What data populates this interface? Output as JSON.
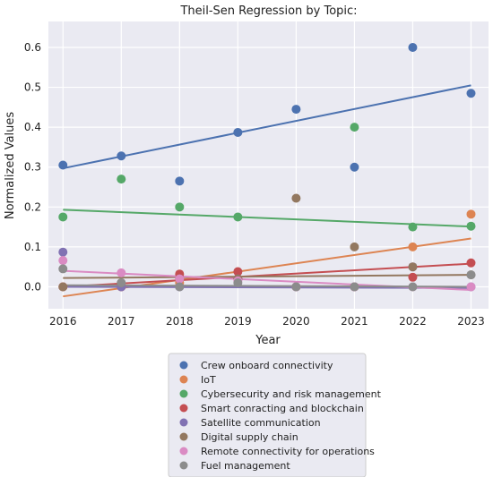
{
  "chart_data": {
    "type": "scatter",
    "title": "Theil-Sen Regression by Topic:",
    "xlabel": "Year",
    "ylabel": "Normalized Values",
    "x": [
      2016,
      2017,
      2018,
      2019,
      2020,
      2021,
      2022,
      2023
    ],
    "xticks": [
      "2016",
      "2017",
      "2018",
      "2019",
      "2020",
      "2021",
      "2022",
      "2023"
    ],
    "yticks": [
      "0.0",
      "0.1",
      "0.2",
      "0.3",
      "0.4",
      "0.5",
      "0.6"
    ],
    "xlim": [
      2015.75,
      2023.3
    ],
    "ylim": [
      -0.055,
      0.665
    ],
    "grid": true,
    "legend_position": "bottom",
    "series": [
      {
        "name": "Crew onboard connectivity",
        "color": "#4c72b0",
        "values": [
          0.305,
          0.328,
          0.265,
          0.387,
          0.445,
          0.3,
          0.6,
          0.485
        ],
        "fit": [
          0.297,
          0.505
        ]
      },
      {
        "name": "IoT",
        "color": "#dd8452",
        "values": [
          0.0,
          0.0,
          0.01,
          0.02,
          0.0,
          0.0,
          0.1,
          0.182
        ],
        "fit": [
          -0.024,
          0.121
        ]
      },
      {
        "name": "Cybersecurity and risk management",
        "color": "#55a868",
        "values": [
          0.175,
          0.27,
          0.2,
          0.175,
          0.0,
          0.4,
          0.15,
          0.152
        ],
        "fit": [
          0.193,
          0.151
        ]
      },
      {
        "name": "Smart conracting and blockchain",
        "color": "#c44e52",
        "values": [
          0.0,
          0.0,
          0.032,
          0.038,
          0.0,
          0.0,
          0.024,
          0.06
        ],
        "fit": [
          0.0,
          0.058
        ]
      },
      {
        "name": "Satellite communication",
        "color": "#8172b3",
        "values": [
          0.087,
          0.0,
          0.0,
          0.02,
          0.0,
          0.0,
          0.05,
          0.0
        ],
        "fit": [
          0.0,
          -0.003
        ]
      },
      {
        "name": "Digital supply chain",
        "color": "#937860",
        "values": [
          0.0,
          0.01,
          0.02,
          0.02,
          0.222,
          0.1,
          0.05,
          0.03
        ],
        "fit": [
          0.022,
          0.03
        ]
      },
      {
        "name": "Remote connectivity for operations",
        "color": "#da8bc3",
        "values": [
          0.066,
          0.035,
          0.02,
          0.015,
          0.0,
          0.0,
          0.0,
          0.0
        ],
        "fit": [
          0.04,
          -0.008
        ]
      },
      {
        "name": "Fuel management",
        "color": "#8c8c8c",
        "values": [
          0.045,
          0.01,
          0.0,
          0.01,
          0.0,
          0.0,
          0.0,
          0.03
        ],
        "fit": [
          0.004,
          0.0
        ]
      }
    ]
  }
}
